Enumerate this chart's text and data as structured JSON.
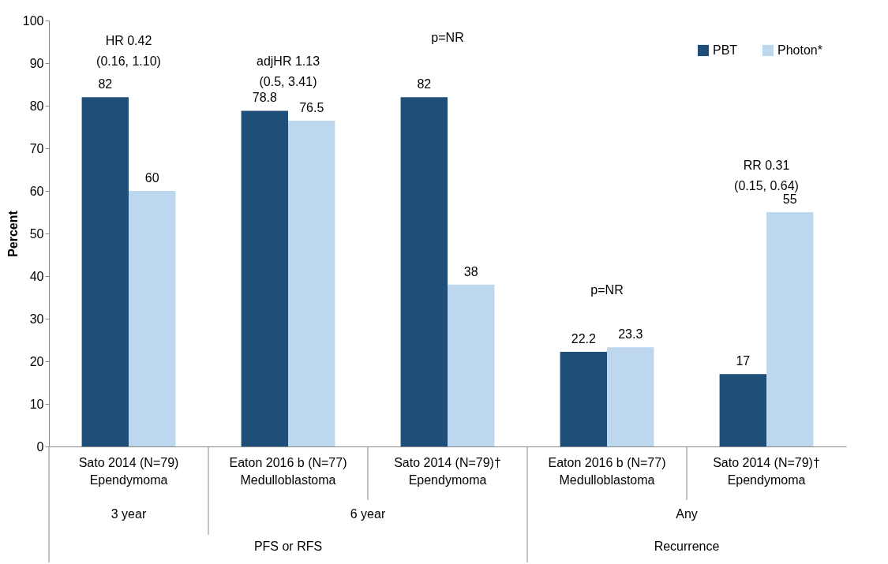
{
  "chart_data": {
    "type": "bar",
    "categories": [
      "Sato 2014  (N=79)\nEpendymoma",
      "Eaton 2016 b (N=77)\nMedulloblastoma",
      "Sato 2014  (N=79)†\nEpendymoma",
      "Eaton 2016 b (N=77)\nMedulloblastoma",
      "Sato 2014  (N=79)†\nEpendymoma"
    ],
    "series": [
      {
        "name": "PBT",
        "color": "#1f4e79",
        "values": [
          82,
          78.8,
          82,
          22.2,
          17
        ]
      },
      {
        "name": "Photon*",
        "color": "#bdd7ee",
        "values": [
          60,
          76.5,
          38,
          23.3,
          55
        ]
      }
    ],
    "ylabel": "Percent",
    "ylim": [
      0,
      100
    ],
    "yticks": [
      0,
      10,
      20,
      30,
      40,
      50,
      60,
      70,
      80,
      90,
      100
    ],
    "data_labels": true,
    "grid": false,
    "legend": "top right",
    "annotations": [
      "HR 0.42\n(0.16, 1.10)",
      "adjHR 1.13\n(0.5, 3.41)",
      "p=NR",
      "p=NR",
      "RR 0.31\n(0.15, 0.64)",
      "3 year",
      "6 year",
      "Any",
      "PFS or RFS",
      "Recurrence"
    ]
  }
}
